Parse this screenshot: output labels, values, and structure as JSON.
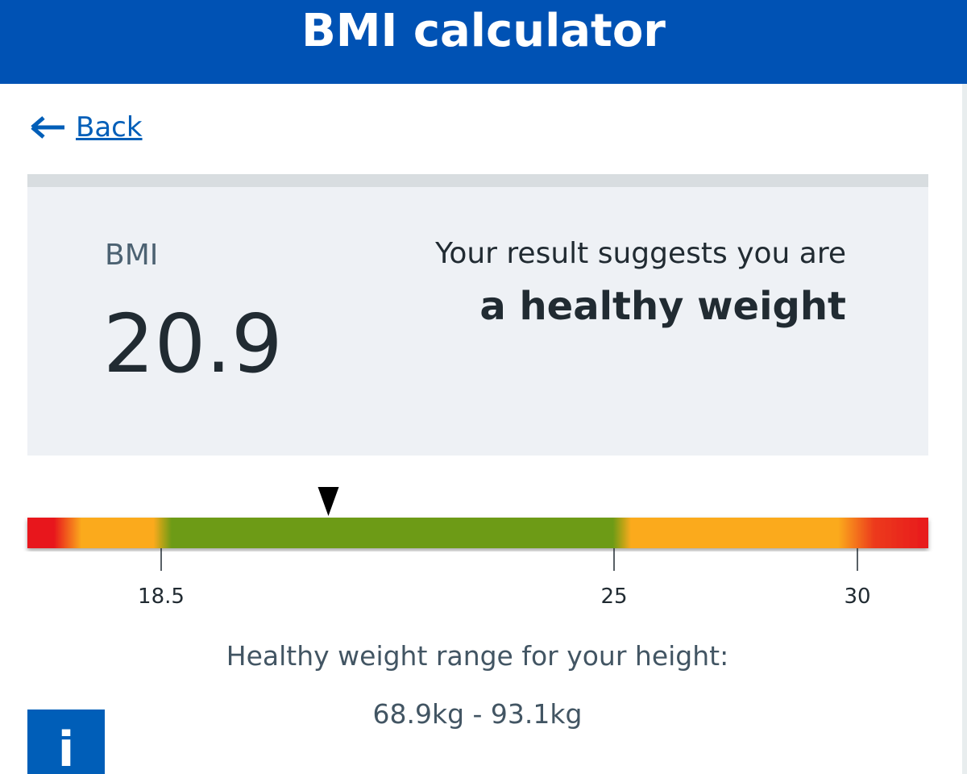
{
  "header": {
    "title": "BMI calculator"
  },
  "back": "Back",
  "result": {
    "label": "BMI",
    "value": 20.9,
    "text": "Your result suggests you are",
    "category": "a healthy weight"
  },
  "scale": {
    "ticks": [
      18.5,
      25,
      30
    ]
  },
  "range": {
    "label": "Healthy weight range for your height:",
    "value": "68.9kg - 93.1kg"
  },
  "info": "i"
}
